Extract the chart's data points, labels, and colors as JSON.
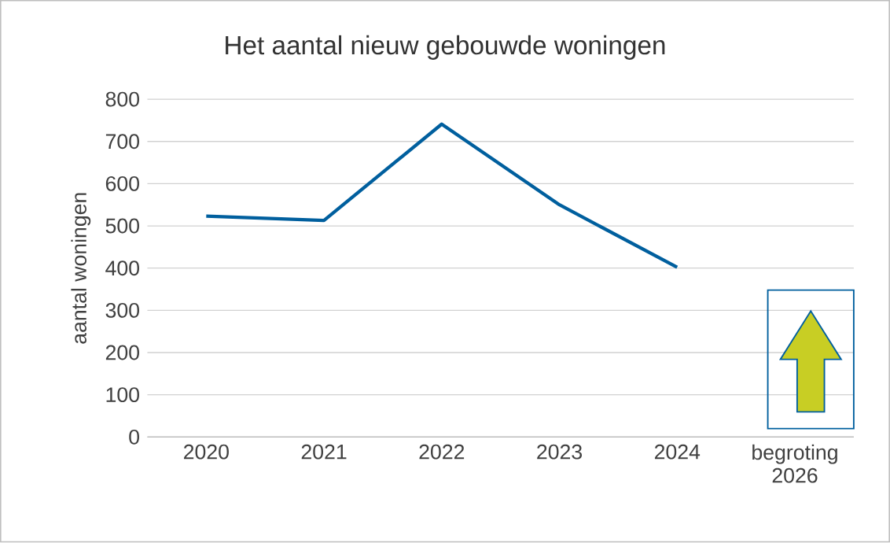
{
  "chart_data": {
    "type": "line",
    "title": "Het aantal nieuw gebouwde woningen",
    "ylabel": "aantal woningen",
    "categories": [
      "2020",
      "2021",
      "2022",
      "2023",
      "2024",
      "begroting 2026"
    ],
    "series": [
      {
        "color": "#005f9e",
        "values": [
          523,
          513,
          741,
          550,
          402,
          null
        ]
      }
    ],
    "ylim": [
      0,
      800
    ],
    "yticks": [
      0,
      100,
      200,
      300,
      400,
      500,
      600,
      700,
      800
    ],
    "grid": "y",
    "marker": "none",
    "line_style": "solid"
  }
}
